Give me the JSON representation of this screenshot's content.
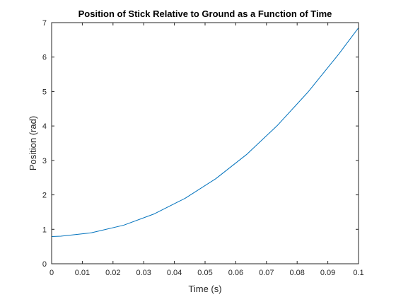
{
  "colors": {
    "series": "#0072bd",
    "axis": "#262626",
    "background": "#ffffff"
  },
  "chart_data": {
    "type": "line",
    "title": "Position of Stick Relative to Ground as a Function of Time",
    "xlabel": "Time (s)",
    "ylabel": "Position (rad)",
    "xlim": [
      0,
      0.1
    ],
    "ylim": [
      0,
      7
    ],
    "x_ticks": [
      "0",
      "0.01",
      "0.02",
      "0.03",
      "0.04",
      "0.05",
      "0.06",
      "0.07",
      "0.08",
      "0.09",
      "0.1"
    ],
    "y_ticks": [
      "0",
      "1",
      "2",
      "3",
      "4",
      "5",
      "6",
      "7"
    ],
    "grid": false,
    "series": [
      {
        "x": [
          0,
          0.003,
          0.013,
          0.0235,
          0.0335,
          0.0435,
          0.0535,
          0.0635,
          0.0735,
          0.0835,
          0.0935,
          0.1
        ],
        "values": [
          0.79,
          0.8,
          0.9,
          1.12,
          1.45,
          1.9,
          2.47,
          3.17,
          4.01,
          4.98,
          6.08,
          6.85
        ]
      }
    ]
  }
}
